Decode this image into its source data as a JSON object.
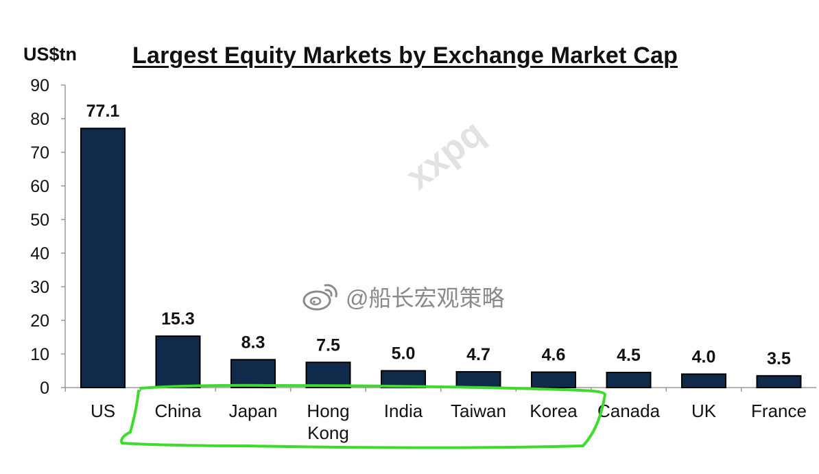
{
  "chart_data": {
    "type": "bar",
    "title": "Largest Equity Markets by Exchange Market Cap",
    "ylabel": "US$tn",
    "ylim": [
      0,
      90
    ],
    "yticks": [
      0,
      10,
      20,
      30,
      40,
      50,
      60,
      70,
      80,
      90
    ],
    "categories": [
      "US",
      "China",
      "Japan",
      "Hong Kong",
      "India",
      "Taiwan",
      "Korea",
      "Canada",
      "UK",
      "France"
    ],
    "values": [
      77.1,
      15.3,
      8.3,
      7.5,
      5.0,
      4.7,
      4.6,
      4.5,
      4.0,
      3.5
    ],
    "data_labels": [
      "77.1",
      "15.3",
      "8.3",
      "7.5",
      "5.0",
      "4.7",
      "4.6",
      "4.5",
      "4.0",
      "3.5"
    ],
    "grid": false,
    "legend": "none",
    "bar_color": "#0f2a4a",
    "highlight_color": "#3ddc2c"
  },
  "watermark": {
    "handle": "@船长宏观策略",
    "overlay": "xxpq"
  }
}
